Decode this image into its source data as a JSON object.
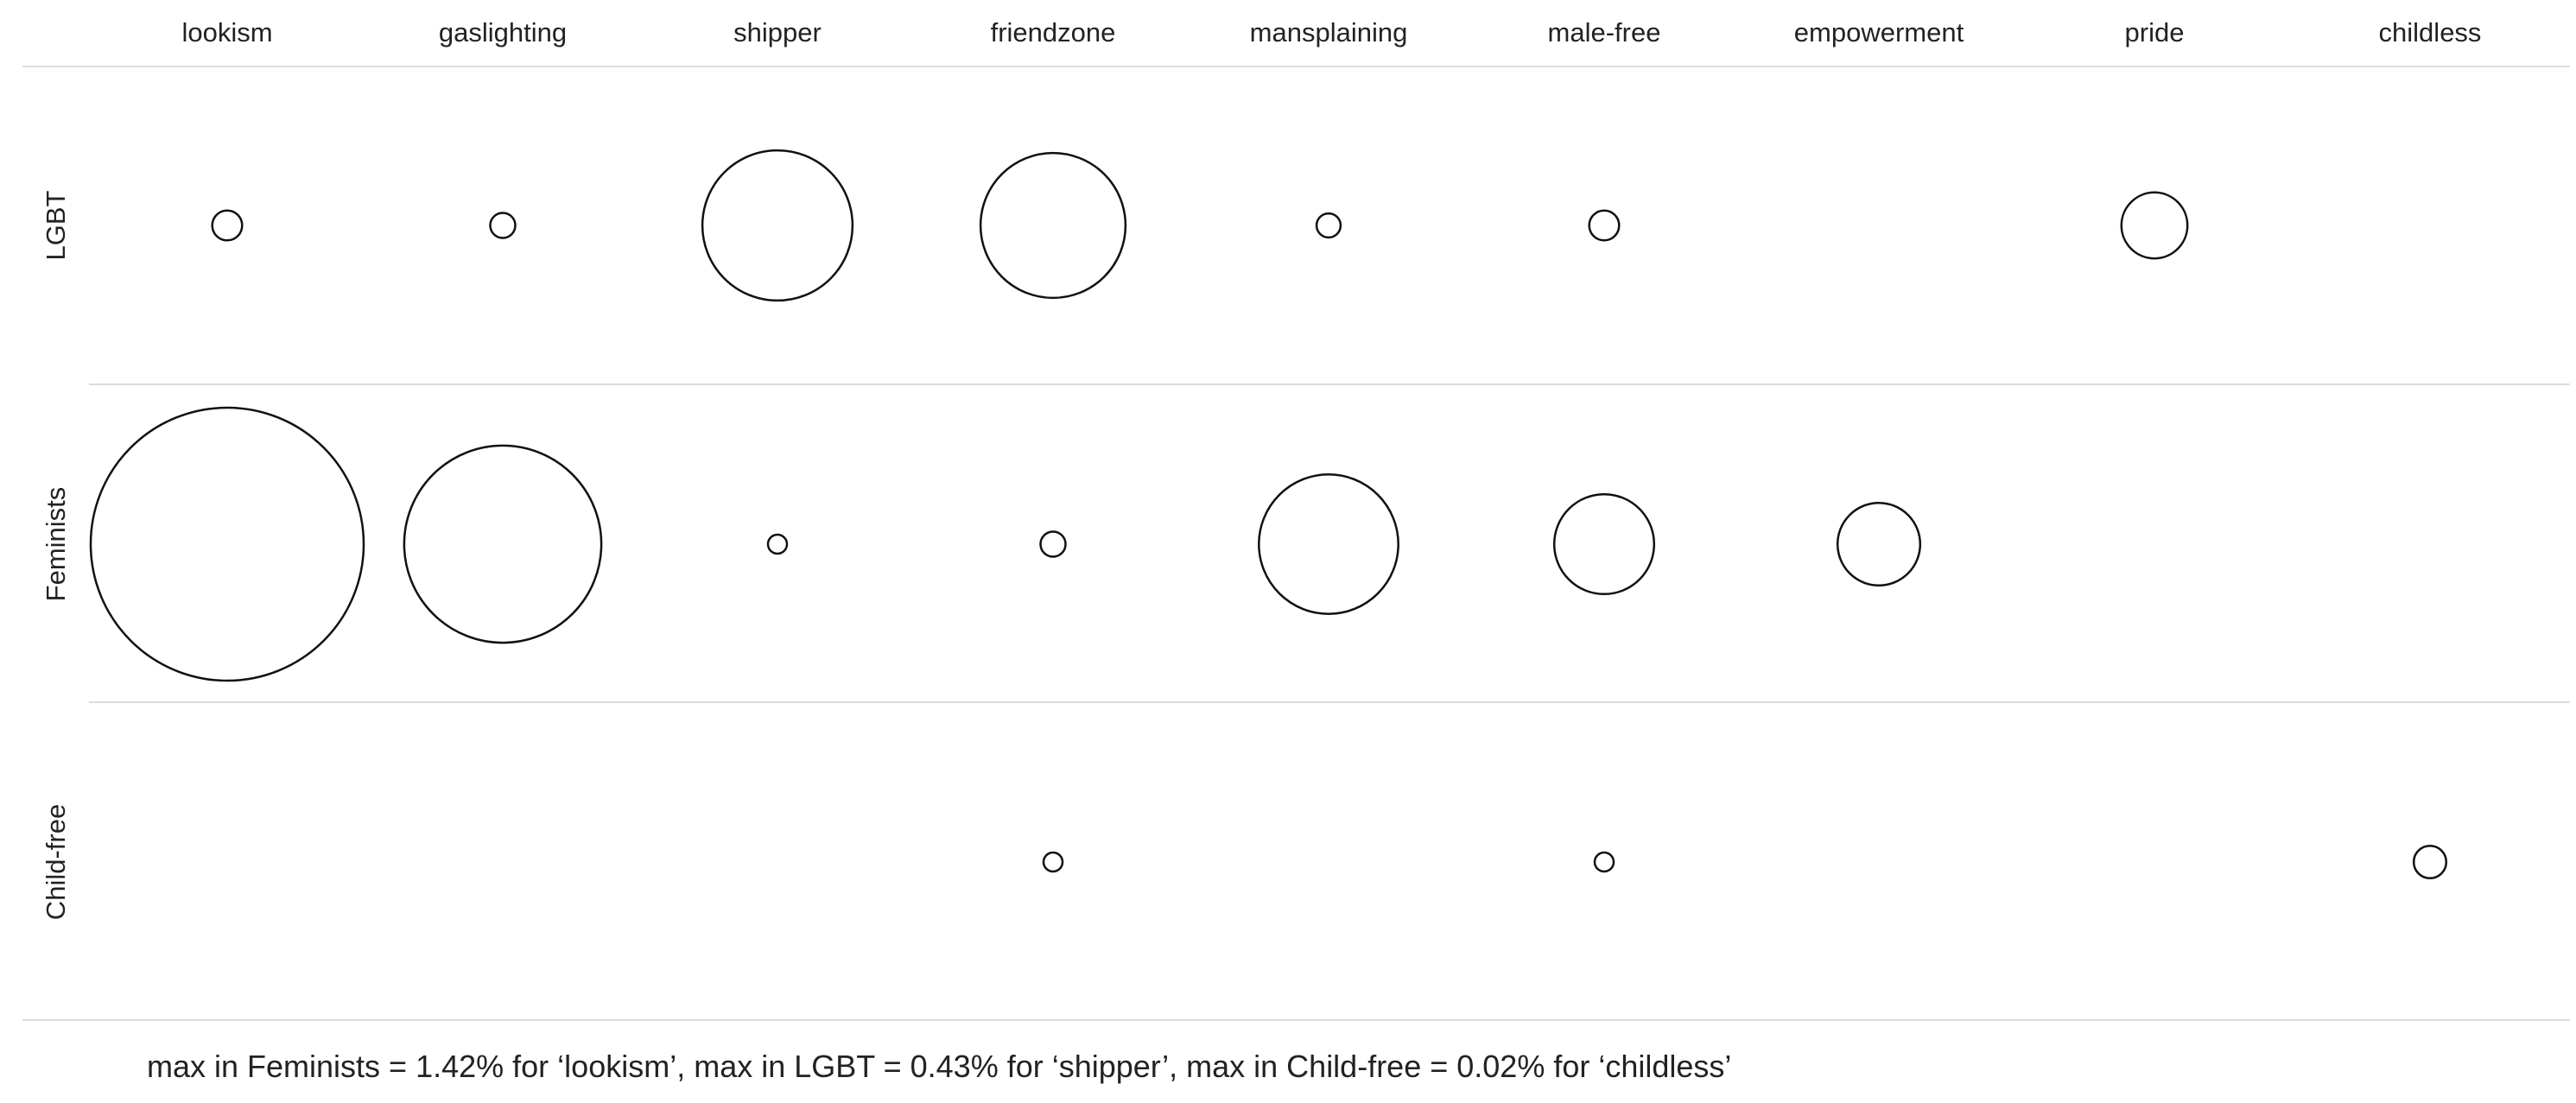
{
  "chart_data": {
    "type": "bubble-matrix",
    "columns": [
      "lookism",
      "gaslighting",
      "shipper",
      "friendzone",
      "mansplaining",
      "male-free",
      "empowerment",
      "pride",
      "childless"
    ],
    "rows": [
      "LGBT",
      "Feminists",
      "Child-free"
    ],
    "value_unit": "%",
    "values": [
      [
        0.017,
        0.012,
        0.43,
        0.4,
        0.011,
        0.017,
        null,
        0.083,
        null
      ],
      [
        1.42,
        0.74,
        0.005,
        0.012,
        0.37,
        0.19,
        0.13,
        null,
        null
      ],
      [
        null,
        null,
        null,
        0.0002,
        null,
        0.0002,
        null,
        null,
        0.02
      ]
    ],
    "row_max": {
      "LGBT": {
        "value": 0.43,
        "term": "shipper"
      },
      "Feminists": {
        "value": 1.42,
        "term": "lookism"
      },
      "Child-free": {
        "value": 0.02,
        "term": "childless"
      }
    },
    "grid": true,
    "legend": "none"
  },
  "caption": "max in Feminists = 1.42% for ‘lookism’, max in LGBT = 0.43% for ‘shipper’, max in Child-free = 0.02% for ‘childless’"
}
